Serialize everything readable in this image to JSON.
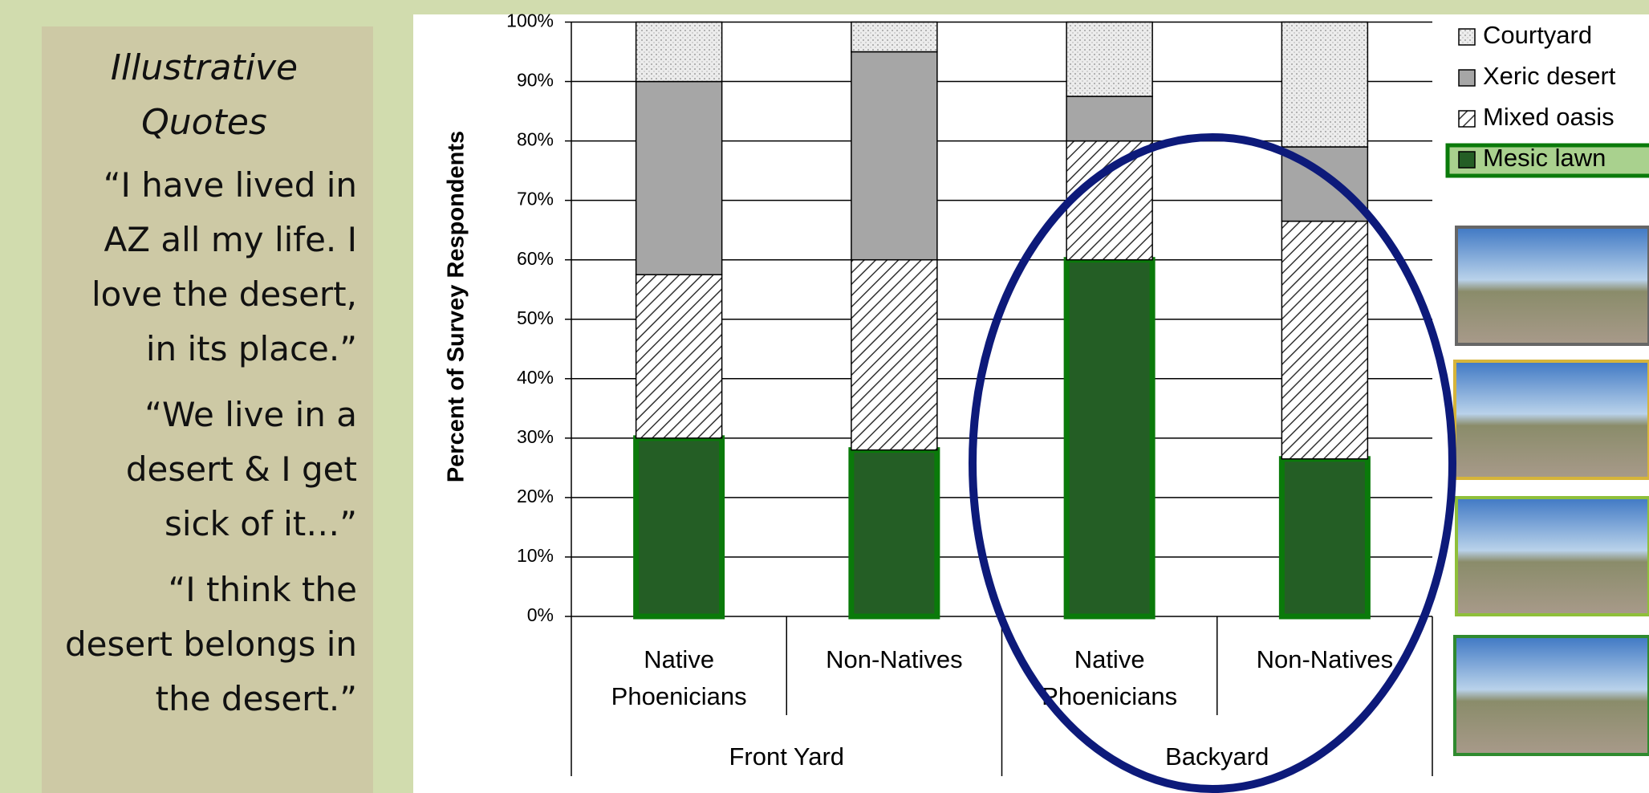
{
  "quotes": {
    "title": "Illustrative Quotes",
    "items": [
      "“I have lived in AZ all my life. I love the desert, in its place.”",
      "“We live in a desert & I get sick of it…”",
      "“I think the desert belongs in the desert.”"
    ]
  },
  "chart_data": {
    "type": "stacked_bar",
    "y_label": "Percent of Survey Respondents",
    "categories": [
      "Native Phoenicians",
      "Non-Natives",
      "Native Phoenicians",
      "Non-Natives"
    ],
    "groups": [
      "Front Yard",
      "Backyard"
    ],
    "series": [
      {
        "name": "Mesic lawn",
        "color": "#245e25",
        "pattern": "solid",
        "values": [
          30,
          28,
          60,
          26.5
        ]
      },
      {
        "name": "Mixed oasis",
        "color": "#ffffff",
        "pattern": "hatch",
        "values": [
          27.5,
          32,
          20,
          40
        ]
      },
      {
        "name": "Xeric desert",
        "color": "#a6a6a6",
        "pattern": "solid",
        "values": [
          32.5,
          35,
          7.5,
          12.5
        ]
      },
      {
        "name": "Courtyard",
        "color": "#ececec",
        "pattern": "dots",
        "values": [
          10,
          5,
          12.5,
          21
        ]
      }
    ],
    "ylim": [
      0,
      100
    ],
    "yticks": [
      {
        "value": 0,
        "label": "0%"
      },
      {
        "value": 10,
        "label": "10%"
      },
      {
        "value": 20,
        "label": "20%"
      },
      {
        "value": 30,
        "label": "30%"
      },
      {
        "value": 40,
        "label": "40%"
      },
      {
        "value": 50,
        "label": "50%"
      },
      {
        "value": 60,
        "label": "60%"
      },
      {
        "value": 70,
        "label": "70%"
      },
      {
        "value": 80,
        "label": "80%"
      },
      {
        "value": 90,
        "label": "90%"
      },
      {
        "value": 100,
        "label": "100%"
      }
    ],
    "grid": true
  }
}
